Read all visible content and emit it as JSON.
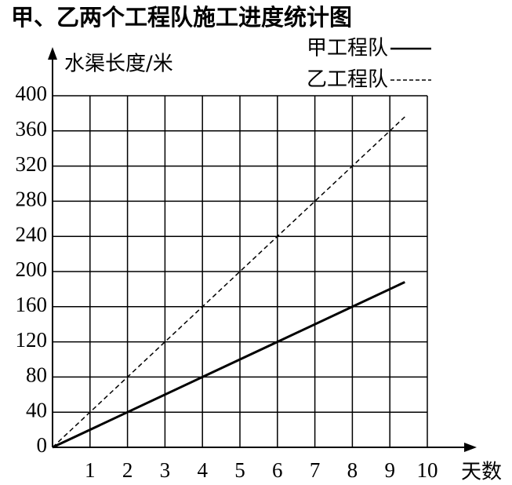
{
  "chart_data": {
    "type": "line",
    "title": "甲、乙两个工程队施工进度统计图",
    "y_label": "水渠长度/米",
    "x_label": "天数",
    "xlim": [
      0,
      10
    ],
    "ylim": [
      0,
      400
    ],
    "xticks": [
      1,
      2,
      3,
      4,
      5,
      6,
      7,
      8,
      9,
      10
    ],
    "yticks": [
      0,
      40,
      80,
      120,
      160,
      200,
      240,
      280,
      320,
      360,
      400
    ],
    "grid": true,
    "legend": "top-right",
    "series": [
      {
        "name": "甲工程队",
        "color": "#000000",
        "style": "solid",
        "x": [
          0,
          2,
          4,
          6,
          9.4
        ],
        "values": [
          0,
          40,
          80,
          120,
          188
        ]
      },
      {
        "name": "乙工程队",
        "color": "#000000",
        "style": "dashed",
        "x": [
          0,
          1,
          2,
          4,
          5,
          7,
          9.4
        ],
        "values": [
          0,
          40,
          80,
          160,
          200,
          280,
          376
        ]
      }
    ]
  }
}
